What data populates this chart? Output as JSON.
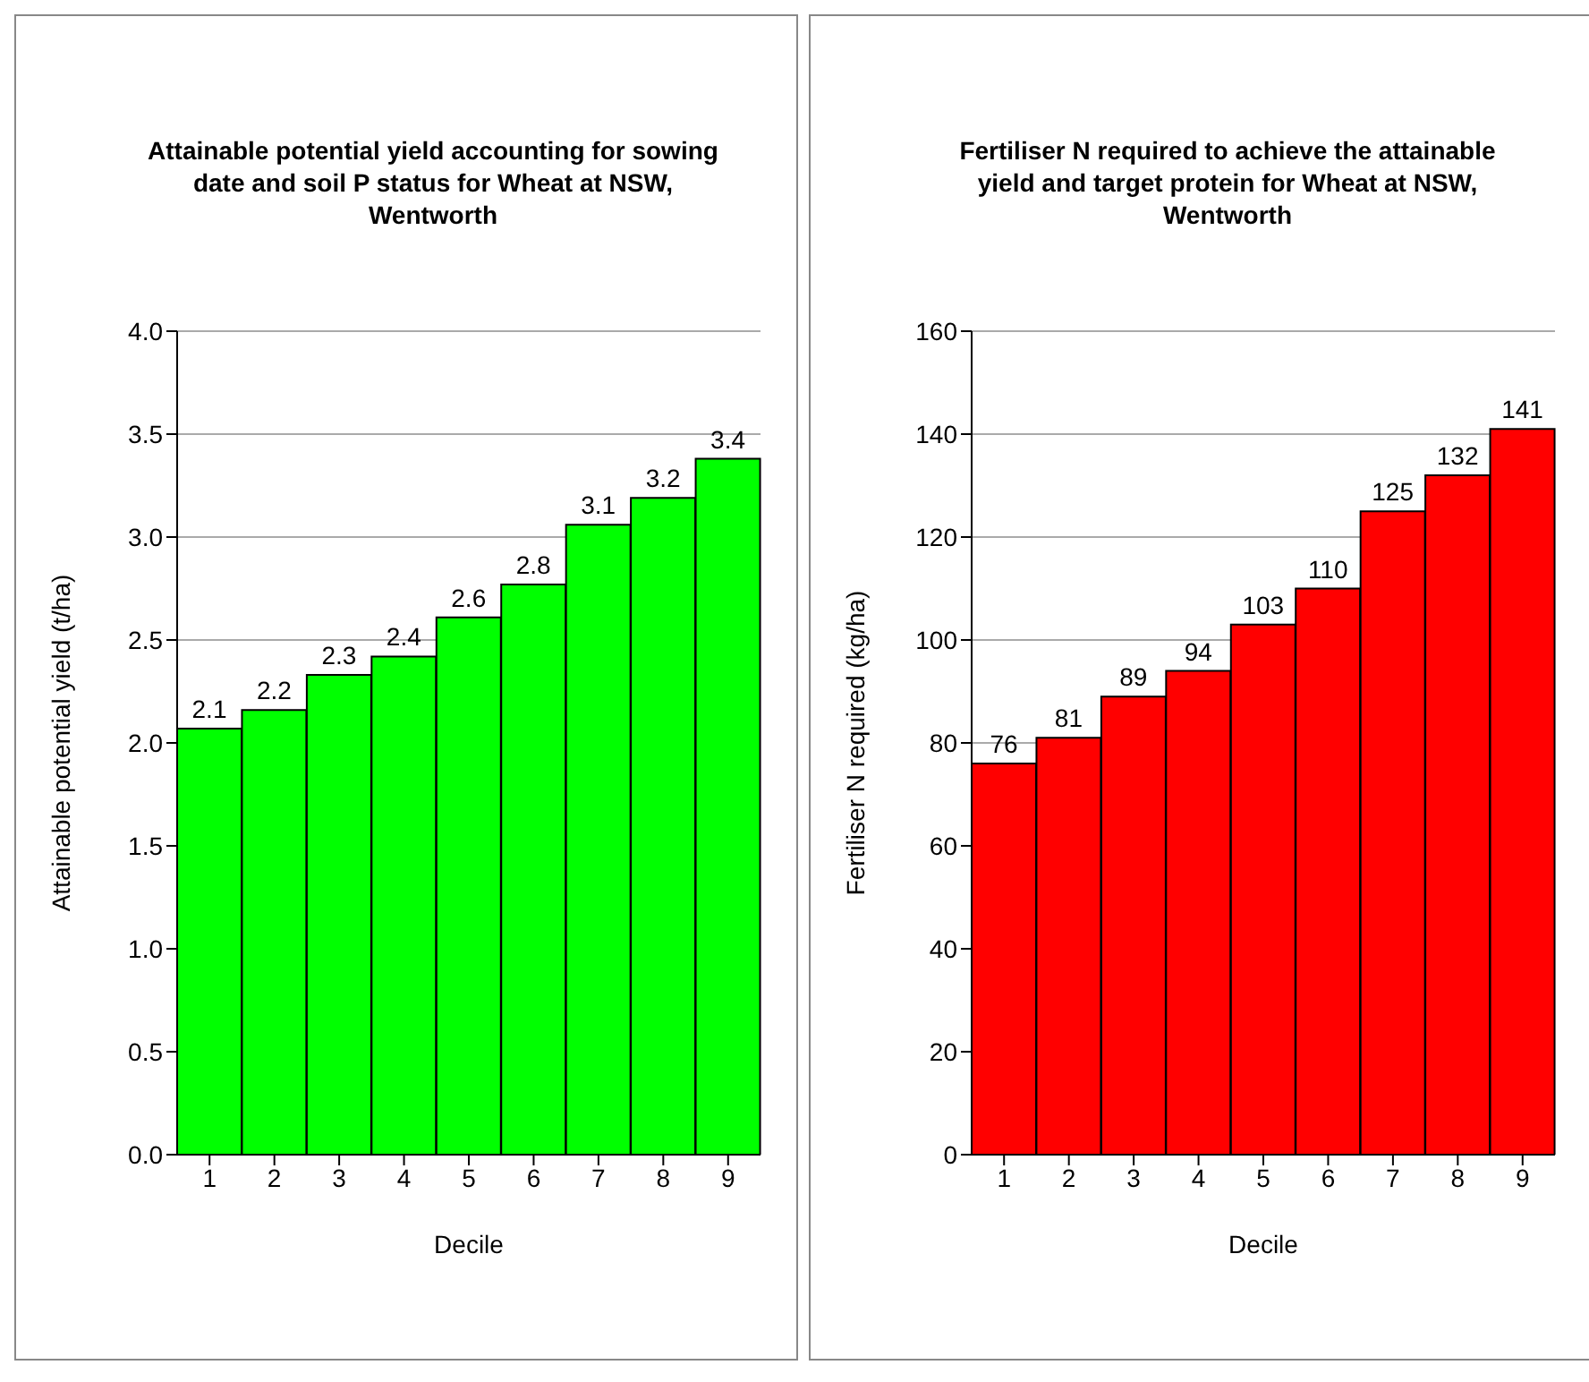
{
  "chart_data": [
    {
      "type": "bar",
      "title": "Attainable potential yield accounting for sowing date and soil P status for Wheat at NSW, Wentworth",
      "xlabel": "Decile",
      "ylabel": "Attainable potential yield (t/ha)",
      "categories": [
        "1",
        "2",
        "3",
        "4",
        "5",
        "6",
        "7",
        "8",
        "9"
      ],
      "series": [
        {
          "color": "#00ff00",
          "values": [
            2.07,
            2.16,
            2.33,
            2.42,
            2.61,
            2.77,
            3.06,
            3.19,
            3.38
          ],
          "value_labels": [
            "2.1",
            "2.2",
            "2.3",
            "2.4",
            "2.6",
            "2.8",
            "3.1",
            "3.2",
            "3.4"
          ]
        }
      ],
      "ylim": [
        0,
        4
      ],
      "yticks": [
        {
          "value": 0,
          "label": "0.0"
        },
        {
          "value": 0.5,
          "label": "0.5"
        },
        {
          "value": 1,
          "label": "1.0"
        },
        {
          "value": 1.5,
          "label": "1.5"
        },
        {
          "value": 2,
          "label": "2.0"
        },
        {
          "value": 2.5,
          "label": "2.5"
        },
        {
          "value": 3,
          "label": "3.0"
        },
        {
          "value": 3.5,
          "label": "3.5"
        },
        {
          "value": 4,
          "label": "4.0"
        }
      ],
      "grid": "y"
    },
    {
      "type": "bar",
      "title": "Fertiliser N required to achieve the attainable yield and target protein for Wheat at NSW, Wentworth",
      "xlabel": "Decile",
      "ylabel": "Fertiliser N required (kg/ha)",
      "categories": [
        "1",
        "2",
        "3",
        "4",
        "5",
        "6",
        "7",
        "8",
        "9"
      ],
      "series": [
        {
          "color": "#ff0000",
          "values": [
            76,
            81,
            89,
            94,
            103,
            110,
            125,
            132,
            141
          ]
        }
      ],
      "data_labels": true,
      "ylim": [
        0,
        160
      ],
      "yticks": [
        0,
        20,
        40,
        60,
        80,
        100,
        120,
        140,
        160
      ],
      "grid": "y"
    }
  ]
}
